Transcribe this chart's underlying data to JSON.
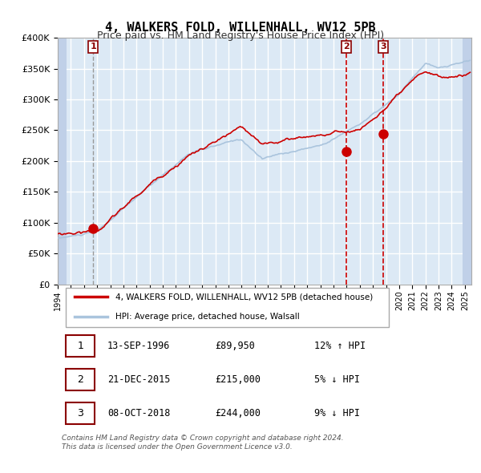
{
  "title": "4, WALKERS FOLD, WILLENHALL, WV12 5PB",
  "subtitle": "Price paid vs. HM Land Registry's House Price Index (HPI)",
  "legend_line1": "4, WALKERS FOLD, WILLENHALL, WV12 5PB (detached house)",
  "legend_line2": "HPI: Average price, detached house, Walsall",
  "footer": "Contains HM Land Registry data © Crown copyright and database right 2024.\nThis data is licensed under the Open Government Licence v3.0.",
  "sale_points": [
    {
      "label": "1",
      "date": "13-SEP-1996",
      "price": 89950,
      "hpi_pct": "12% ↑ HPI",
      "x_year": 1996.71
    },
    {
      "label": "2",
      "date": "21-DEC-2015",
      "price": 215000,
      "hpi_pct": "5% ↓ HPI",
      "x_year": 2015.97
    },
    {
      "label": "3",
      "date": "08-OCT-2018",
      "price": 244000,
      "hpi_pct": "9% ↓ HPI",
      "x_year": 2018.77
    }
  ],
  "hpi_color": "#aac4dd",
  "price_color": "#cc0000",
  "dot_color": "#cc0000",
  "vline_color_1": "#888888",
  "vline_color_23": "#cc0000",
  "bg_color": "#dce9f5",
  "plot_bg": "#dce9f5",
  "grid_color": "#ffffff",
  "hatch_color": "#c0d0e8",
  "ylim": [
    0,
    400000
  ],
  "yticks": [
    0,
    50000,
    100000,
    150000,
    200000,
    250000,
    300000,
    350000,
    400000
  ],
  "xlim_start": 1994.0,
  "xlim_end": 2025.5
}
